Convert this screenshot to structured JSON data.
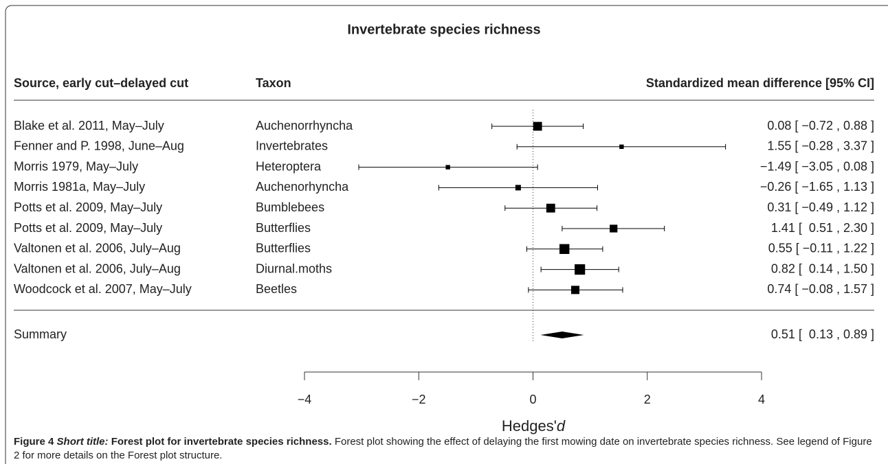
{
  "chart_data": {
    "type": "forest",
    "title": "Invertebrate species richness",
    "columns": [
      "Source, early cut–delayed cut",
      "Taxon",
      "Standardized mean difference [95% CI]"
    ],
    "sources": [
      "Blake et al. 2011, May–July",
      "Fenner and P. 1998, June–Aug",
      "Morris 1979, May–July",
      "Morris 1981a, May–July",
      "Potts et al. 2009, May–July",
      "Potts et al. 2009, May–July",
      "Valtonen et al. 2006, July–Aug",
      "Valtonen et al. 2006, July–Aug",
      "Woodcock et al. 2007, May–July"
    ],
    "taxa": [
      "Auchenorrhyncha",
      "Invertebrates",
      "Heteroptera",
      "Auchenorhyncha",
      "Bumblebees",
      "Butterflies",
      "Butterflies",
      "Diurnal.moths",
      "Beetles"
    ],
    "values": [
      0.08,
      1.55,
      -1.49,
      -0.26,
      0.31,
      1.41,
      0.55,
      0.82,
      0.74
    ],
    "lower": [
      -0.72,
      -0.28,
      -3.05,
      -1.65,
      -0.49,
      0.51,
      -0.11,
      0.14,
      -0.08
    ],
    "upper": [
      0.88,
      3.37,
      0.08,
      1.13,
      1.12,
      2.3,
      1.22,
      1.5,
      1.57
    ],
    "weights": [
      11,
      3,
      3,
      5,
      11,
      9,
      13,
      14,
      10
    ],
    "value_labels": [
      "0.08 [ −0.72 , 0.88 ]",
      "1.55 [ −0.28 , 3.37 ]",
      "−1.49 [ −3.05 , 0.08 ]",
      "−0.26 [ −1.65 , 1.13 ]",
      "0.31 [ −0.49 , 1.12 ]",
      "1.41 [  0.51 , 2.30 ]",
      "0.55 [ −0.11 , 1.22 ]",
      "0.82 [  0.14 , 1.50 ]",
      "0.74 [ −0.08 , 1.57 ]"
    ],
    "summary": {
      "label": "Summary",
      "value": 0.51,
      "lower": 0.13,
      "upper": 0.89,
      "value_label": "0.51 [  0.13 , 0.89 ]"
    },
    "xlim": [
      -4,
      4
    ],
    "xticks": [
      {
        "value": -4,
        "label": "−4"
      },
      {
        "value": -2,
        "label": "−2"
      },
      0,
      2,
      4
    ],
    "xlabel": "Hedges'",
    "xlabel_symbol": "d",
    "color": "#000000"
  },
  "caption": {
    "figure": "Figure 4",
    "short_title_label": "Short title:",
    "short_title": "Forest plot for invertebrate species richness.",
    "text": "Forest plot showing the effect of delaying the first mowing date on invertebrate species richness. See legend of Figure 2 for more details on the Forest plot structure."
  }
}
